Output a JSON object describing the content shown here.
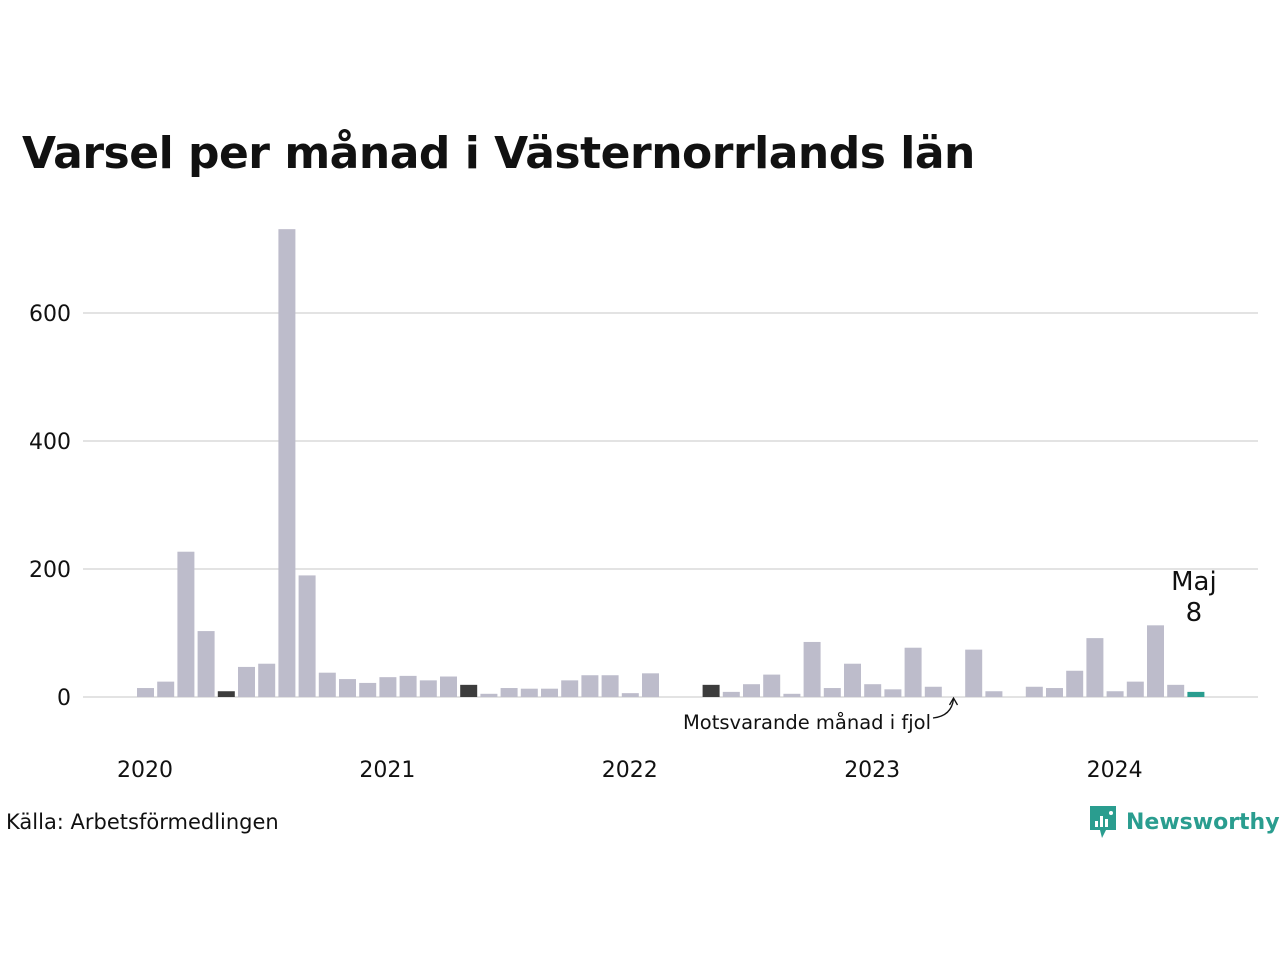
{
  "chart_data": {
    "type": "bar",
    "title": "Varsel per månad i Västernorrlands län",
    "ylim": [
      0,
      740
    ],
    "yticks": [
      0,
      200,
      400,
      600
    ],
    "grid": true,
    "xtick_labels": [
      "2020",
      "2021",
      "2022",
      "2023",
      "2024"
    ],
    "series": [
      {
        "values": [
          14,
          24,
          227,
          103,
          9,
          47,
          52,
          731,
          190,
          38,
          28,
          22,
          31,
          33,
          26,
          32,
          19,
          5,
          14,
          13,
          13,
          26,
          34,
          34,
          6,
          37,
          0,
          0,
          19,
          8,
          20,
          35,
          5,
          86,
          14,
          52,
          20,
          12,
          77,
          16,
          0,
          74,
          9,
          0,
          16,
          14,
          41,
          92,
          9,
          24,
          112,
          19,
          8
        ]
      }
    ],
    "highlight_same_month_index": [
      4,
      16,
      28,
      40
    ],
    "current_index": 52,
    "colors": {
      "bar": "#bdbccb",
      "same_month": "#3c3c3c",
      "current": "#2a9d8f",
      "grid": "#e3e3e3",
      "text": "#111111"
    },
    "annotations": {
      "last_month_label": "Maj",
      "last_value_label": "8",
      "same_month_note": "Motsvarande månad i fjol"
    }
  },
  "source": "Källa: Arbetsförmedlingen",
  "brand": {
    "name": "Newsworthy",
    "icon": "newsworthy-logo-icon"
  }
}
